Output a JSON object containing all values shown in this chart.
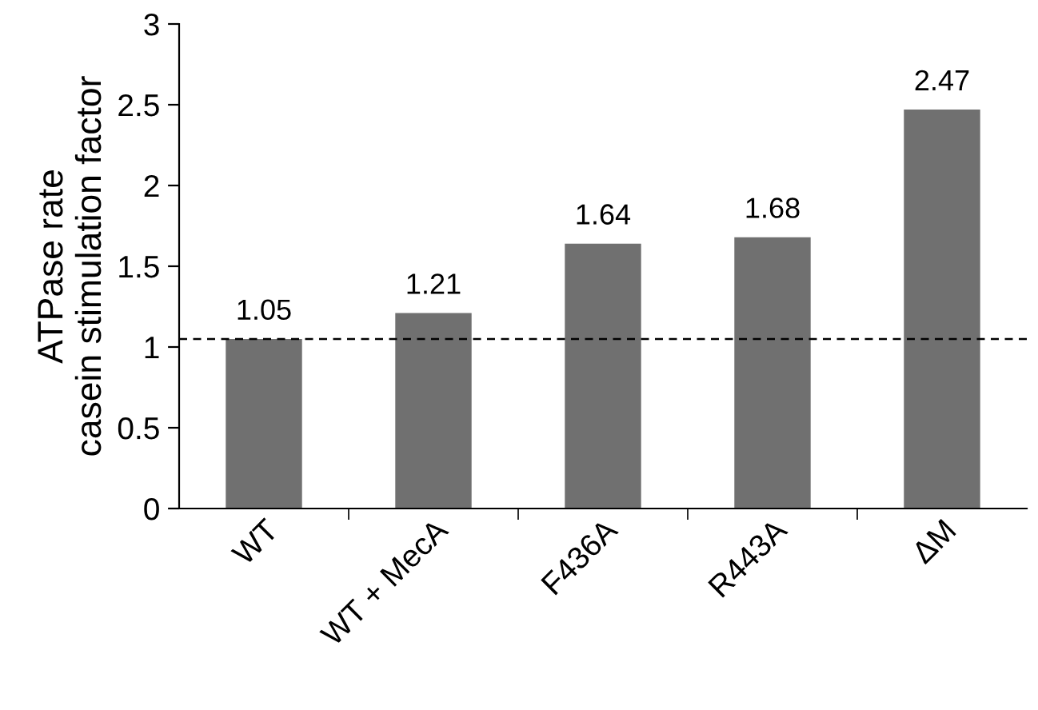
{
  "chart_data": {
    "type": "bar",
    "ylabel": "ATPase rate\ncasein stimulation factor",
    "categories": [
      "WT",
      "WT + MecA",
      "F436A",
      "R443A",
      "ΔM"
    ],
    "values": [
      1.05,
      1.21,
      1.64,
      1.68,
      2.47
    ],
    "color": "#707070",
    "ylim": [
      0,
      3
    ],
    "yticks": [
      0,
      0.5,
      1,
      1.5,
      2,
      2.5,
      3
    ],
    "data_labels": true,
    "grid": false,
    "ref_lines": [
      {
        "axis": "y",
        "value": 1.05,
        "color": "#000000",
        "line_style": "dashed"
      }
    ]
  }
}
